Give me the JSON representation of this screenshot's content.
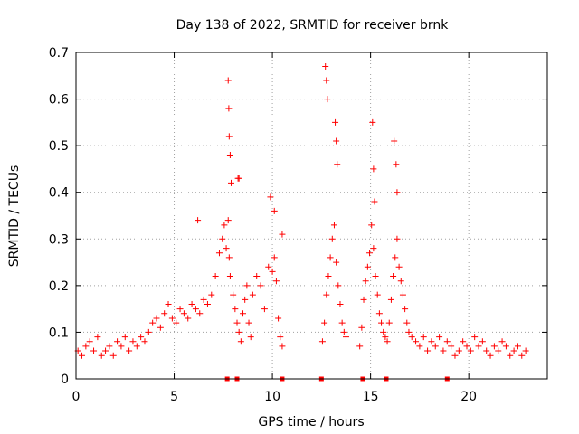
{
  "chart_data": {
    "type": "scatter",
    "title": "Day 138 of 2022, SRMTID for receiver brnk",
    "xlabel": "GPS time / hours",
    "ylabel": "SRMTID / TECUs",
    "xlim": [
      0,
      24
    ],
    "ylim": [
      0,
      0.7
    ],
    "xticks": [
      0,
      5,
      10,
      15,
      20
    ],
    "yticks": [
      0,
      0.1,
      0.2,
      0.3,
      0.4,
      0.5,
      0.6,
      0.7
    ],
    "grid": true,
    "marker": "+",
    "color": "#ff0000",
    "series": [
      {
        "name": "SRMTID",
        "x": [
          0.1,
          0.3,
          0.5,
          0.7,
          0.9,
          1.1,
          1.3,
          1.5,
          1.7,
          1.9,
          2.1,
          2.3,
          2.5,
          2.7,
          2.9,
          3.1,
          3.3,
          3.5,
          3.7,
          3.9,
          4.1,
          4.3,
          4.5,
          4.7,
          4.9,
          5.1,
          5.3,
          5.5,
          5.7,
          5.9,
          6.1,
          6.3,
          6.5,
          6.7,
          6.9,
          7.1,
          7.3,
          7.45,
          7.55,
          7.65,
          7.75,
          7.8,
          7.85,
          8.0,
          8.1,
          8.2,
          8.3,
          8.4,
          8.5,
          8.6,
          8.7,
          8.8,
          8.9,
          9.0,
          9.2,
          9.4,
          9.6,
          9.8,
          10.0,
          10.1,
          10.2,
          10.3,
          10.4,
          10.5,
          12.55,
          12.65,
          12.75,
          12.85,
          12.95,
          13.05,
          13.15,
          13.25,
          13.35,
          13.45,
          13.55,
          13.65,
          13.75,
          14.45,
          14.55,
          14.65,
          14.75,
          14.85,
          14.95,
          15.05,
          15.15,
          15.25,
          15.35,
          15.45,
          15.55,
          15.65,
          15.75,
          15.85,
          15.95,
          16.05,
          16.15,
          16.25,
          16.35,
          16.45,
          16.55,
          16.65,
          16.75,
          16.85,
          16.95,
          17.1,
          17.3,
          17.5,
          17.7,
          17.9,
          18.1,
          18.3,
          18.5,
          18.7,
          18.9,
          19.1,
          19.3,
          19.5,
          19.7,
          19.9,
          20.1,
          20.3,
          20.5,
          20.7,
          20.9,
          21.1,
          21.3,
          21.5,
          21.7,
          21.9,
          22.1,
          22.3,
          22.5,
          22.7,
          22.9,
          7.75,
          7.78,
          7.8,
          7.85,
          7.9,
          8.25,
          10.5,
          12.7,
          12.75,
          12.8,
          13.2,
          13.25,
          13.3,
          15.1,
          15.15,
          15.2,
          16.2,
          16.3,
          16.35,
          6.2,
          8.3,
          9.9,
          10.1
        ],
        "y": [
          0.06,
          0.05,
          0.07,
          0.08,
          0.06,
          0.09,
          0.05,
          0.06,
          0.07,
          0.05,
          0.08,
          0.07,
          0.09,
          0.06,
          0.08,
          0.07,
          0.09,
          0.08,
          0.1,
          0.12,
          0.13,
          0.11,
          0.14,
          0.16,
          0.13,
          0.12,
          0.15,
          0.14,
          0.13,
          0.16,
          0.15,
          0.14,
          0.17,
          0.16,
          0.18,
          0.22,
          0.27,
          0.3,
          0.33,
          0.28,
          0.34,
          0.26,
          0.22,
          0.18,
          0.15,
          0.12,
          0.1,
          0.08,
          0.14,
          0.17,
          0.2,
          0.12,
          0.09,
          0.18,
          0.22,
          0.2,
          0.15,
          0.24,
          0.23,
          0.26,
          0.21,
          0.13,
          0.09,
          0.07,
          0.08,
          0.12,
          0.18,
          0.22,
          0.26,
          0.3,
          0.33,
          0.25,
          0.2,
          0.16,
          0.12,
          0.1,
          0.09,
          0.07,
          0.11,
          0.17,
          0.21,
          0.24,
          0.27,
          0.33,
          0.28,
          0.22,
          0.18,
          0.14,
          0.12,
          0.1,
          0.09,
          0.08,
          0.12,
          0.17,
          0.22,
          0.26,
          0.3,
          0.24,
          0.21,
          0.18,
          0.15,
          0.12,
          0.1,
          0.09,
          0.08,
          0.07,
          0.09,
          0.06,
          0.08,
          0.07,
          0.09,
          0.06,
          0.08,
          0.07,
          0.05,
          0.06,
          0.08,
          0.07,
          0.06,
          0.09,
          0.07,
          0.08,
          0.06,
          0.05,
          0.07,
          0.06,
          0.08,
          0.07,
          0.05,
          0.06,
          0.07,
          0.05,
          0.06,
          0.64,
          0.58,
          0.52,
          0.48,
          0.42,
          0.43,
          0.31,
          0.67,
          0.64,
          0.6,
          0.55,
          0.51,
          0.46,
          0.55,
          0.45,
          0.38,
          0.51,
          0.46,
          0.4,
          0.34,
          0.43,
          0.39,
          0.36
        ],
        "zero_markers_x": [
          7.7,
          8.2,
          10.5,
          12.5,
          14.6,
          15.8,
          18.9
        ]
      }
    ]
  }
}
